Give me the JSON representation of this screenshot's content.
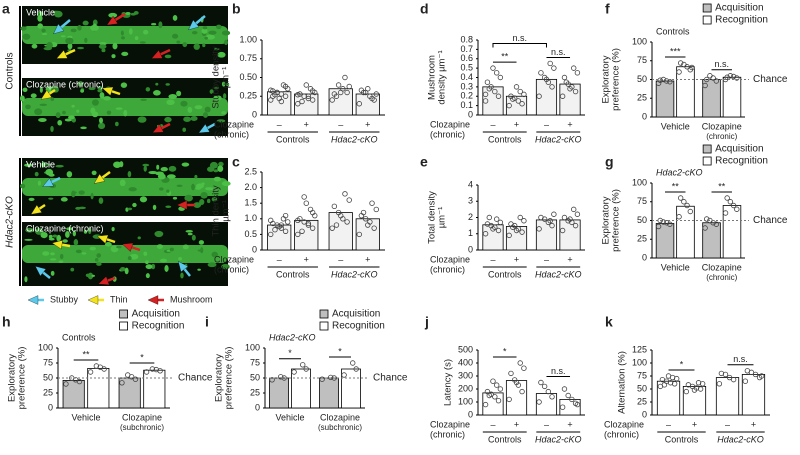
{
  "panel_a": {
    "label": "a",
    "groups": [
      "Controls",
      "Hdac2-cKO"
    ],
    "images": [
      "Vehicle",
      "Clozapine (chronic)",
      "Vehicle",
      "Clozapine (chronic)"
    ],
    "legend": [
      "Stubby",
      "Thin",
      "Mushroom"
    ],
    "legend_colors": [
      "#5cc8ea",
      "#f2e31c",
      "#d42222"
    ]
  },
  "chart_data": [
    {
      "type": "bar",
      "label": "b",
      "ylabel": [
        "Stubby density",
        "µm⁻¹"
      ],
      "treatment": [
        "Clozapine",
        "(chronic)"
      ],
      "categories": [
        "–",
        "+",
        "–",
        "+"
      ],
      "groups": [
        "Controls",
        "Hdac2-cKO"
      ],
      "color": "#f2f2f2",
      "values": [
        0.31,
        0.28,
        0.35,
        0.28
      ],
      "points": [
        [
          0.2,
          0.25,
          0.28,
          0.3,
          0.32,
          0.35,
          0.4,
          0.22,
          0.27,
          0.33,
          0.38,
          0.18,
          0.3,
          0.25
        ],
        [
          0.15,
          0.2,
          0.22,
          0.25,
          0.28,
          0.3,
          0.35,
          0.4,
          0.18,
          0.27,
          0.32,
          0.25
        ],
        [
          0.2,
          0.3,
          0.35,
          0.4,
          0.28,
          0.38,
          0.5,
          0.3,
          0.25
        ],
        [
          0.15,
          0.2,
          0.25,
          0.3,
          0.33,
          0.28,
          0.22,
          0.35,
          0.3
        ]
      ],
      "ylim": [
        0,
        1
      ],
      "yticks": [
        0,
        0.25,
        {
          "value": 0.5,
          "label": "0.50"
        },
        0.75,
        {
          "value": 1,
          "label": "1.00"
        }
      ]
    },
    {
      "type": "bar",
      "label": "c",
      "ylabel": [
        "Thin density",
        "µm⁻¹"
      ],
      "treatment": [
        "Clozapine",
        "(chronic)"
      ],
      "categories": [
        "–",
        "+",
        "–",
        "+"
      ],
      "groups": [
        "Controls",
        "Hdac2-cKO"
      ],
      "color": "#f2f2f2",
      "values": [
        0.8,
        0.95,
        1.2,
        1.0
      ],
      "points": [
        [
          0.5,
          0.6,
          0.7,
          0.8,
          0.85,
          0.9,
          1.0,
          0.75,
          0.65,
          0.95,
          1.1,
          0.8
        ],
        [
          0.5,
          0.7,
          0.8,
          0.9,
          1.0,
          1.1,
          1.3,
          1.5,
          0.6,
          0.95,
          1.2,
          0.85,
          1.7
        ],
        [
          0.7,
          0.9,
          1.0,
          1.2,
          1.4,
          1.6,
          1.8,
          1.1,
          0.8
        ],
        [
          0.5,
          0.7,
          0.9,
          1.0,
          1.1,
          1.3,
          1.5,
          0.8,
          1.2
        ]
      ],
      "ylim": [
        0,
        2.5
      ],
      "yticks": [
        0,
        0.5,
        {
          "value": 1,
          "label": "1.0"
        },
        1.5,
        {
          "value": 2,
          "label": "2.0"
        },
        2.5
      ]
    },
    {
      "type": "bar",
      "label": "d",
      "ylabel": [
        "Mushroom",
        "density µm⁻¹"
      ],
      "treatment": [
        "Clozapine",
        "(chronic)"
      ],
      "categories": [
        "–",
        "+",
        "–",
        "+"
      ],
      "groups": [
        "Controls",
        "Hdac2-cKO"
      ],
      "color": "#f2f2f2",
      "values": [
        0.3,
        0.2,
        0.38,
        0.33
      ],
      "points": [
        [
          0.15,
          0.2,
          0.25,
          0.3,
          0.35,
          0.4,
          0.45,
          0.5,
          0.28,
          0.22
        ],
        [
          0.1,
          0.12,
          0.15,
          0.18,
          0.2,
          0.22,
          0.25,
          0.3,
          0.17
        ],
        [
          0.2,
          0.3,
          0.35,
          0.4,
          0.45,
          0.5,
          0.55,
          0.38
        ],
        [
          0.2,
          0.25,
          0.3,
          0.33,
          0.4,
          0.45,
          0.5,
          0.28,
          0.35
        ]
      ],
      "ylim": [
        0,
        0.8
      ],
      "yticks": [
        0,
        0.1,
        0.2,
        0.3,
        0.4,
        0.5,
        0.6,
        0.7,
        0.8
      ],
      "significance": {
        "within": [
          "**",
          "n.s."
        ],
        "across": [
          "n.s."
        ]
      }
    },
    {
      "type": "bar",
      "label": "e",
      "ylabel": [
        "Total density",
        "µm⁻¹"
      ],
      "treatment": [
        "Clozapine",
        "(chronic)"
      ],
      "categories": [
        "–",
        "+",
        "–",
        "+"
      ],
      "groups": [
        "Controls",
        "Hdac2-cKO"
      ],
      "color": "#f2f2f2",
      "values": [
        1.55,
        1.45,
        1.85,
        1.85
      ],
      "points": [
        [
          1.0,
          1.2,
          1.4,
          1.5,
          1.6,
          1.7,
          1.9,
          1.3,
          2.0
        ],
        [
          0.9,
          1.1,
          1.3,
          1.5,
          1.6,
          1.8,
          2.0,
          1.2,
          1.4
        ],
        [
          1.3,
          1.5,
          1.7,
          1.9,
          2.0,
          2.2,
          1.8
        ],
        [
          1.2,
          1.5,
          1.7,
          1.8,
          2.0,
          2.2,
          2.5,
          1.9
        ]
      ],
      "ylim": [
        0,
        4
      ],
      "yticks": [
        0,
        1,
        2,
        3,
        4
      ]
    },
    {
      "type": "grouped_bar",
      "label": "f",
      "subtitle": "Controls",
      "ylabel": [
        "Exploratory",
        "preference (%)"
      ],
      "categories": [
        [
          "Vehicle"
        ],
        [
          "Clozapine",
          "(chronic)"
        ]
      ],
      "series": [
        {
          "name": "Acquisition",
          "color": "#bfbfbf",
          "values": [
            48,
            50
          ],
          "points": [
            [
              45,
              47,
              48,
              50,
              49
            ],
            [
              42,
              48,
              52,
              55,
              50
            ]
          ]
        },
        {
          "name": "Recognition",
          "color": "#ffffff",
          "values": [
            67,
            53
          ],
          "points": [
            [
              60,
              63,
              67,
              70,
              72,
              66
            ],
            [
              50,
              52,
              54,
              55,
              53
            ]
          ]
        }
      ],
      "reference": {
        "value": 50,
        "label": "Chance"
      },
      "ylim": [
        0,
        100
      ],
      "yticks": [
        0,
        25,
        50,
        75,
        100
      ],
      "significance": {
        "within": [
          "***",
          "n.s."
        ]
      }
    },
    {
      "type": "grouped_bar",
      "label": "g",
      "subtitle": "Hdac2-cKO",
      "ylabel": [
        "Exploratory",
        "preference (%)"
      ],
      "categories": [
        [
          "Vehicle"
        ],
        [
          "Clozapine",
          "(chronic)"
        ]
      ],
      "series": [
        {
          "name": "Acquisition",
          "color": "#bfbfbf",
          "values": [
            46,
            47
          ],
          "points": [
            [
              42,
              45,
              47,
              48,
              50
            ],
            [
              40,
              45,
              47,
              50,
              52
            ]
          ]
        },
        {
          "name": "Recognition",
          "color": "#ffffff",
          "values": [
            69,
            70
          ],
          "points": [
            [
              55,
              62,
              70,
              75,
              80
            ],
            [
              60,
              65,
              70,
              75,
              80
            ]
          ]
        }
      ],
      "reference": {
        "value": 50,
        "label": "Chance"
      },
      "ylim": [
        0,
        100
      ],
      "yticks": [
        0,
        25,
        50,
        75,
        100
      ],
      "significance": {
        "within": [
          "**",
          "**"
        ]
      }
    },
    {
      "type": "grouped_bar",
      "label": "h",
      "subtitle": "Controls",
      "ylabel": [
        "Exploratory",
        "preference (%)"
      ],
      "categories": [
        [
          "Vehicle"
        ],
        [
          "Clozapine",
          "(subchronic)"
        ]
      ],
      "series": [
        {
          "name": "Acquisition",
          "color": "#bfbfbf",
          "values": [
            46,
            50
          ],
          "points": [
            [
              40,
              44,
              47,
              50
            ],
            [
              42,
              48,
              52,
              55
            ]
          ]
        },
        {
          "name": "Recognition",
          "color": "#ffffff",
          "values": [
            66,
            63
          ],
          "points": [
            [
              60,
              65,
              68,
              70
            ],
            [
              60,
              62,
              64,
              65
            ]
          ]
        }
      ],
      "reference": {
        "value": 50,
        "label": "Chance"
      },
      "ylim": [
        0,
        100
      ],
      "yticks": [
        0,
        25,
        50,
        75,
        100
      ],
      "significance": {
        "within": [
          "**",
          "*"
        ]
      }
    },
    {
      "type": "grouped_bar",
      "label": "i",
      "subtitle": "Hdac2-cKO",
      "ylabel": [
        "Exploratory",
        "preference (%)"
      ],
      "categories": [
        [
          "Vehicle"
        ],
        [
          "Clozapine",
          "(subchronic)"
        ]
      ],
      "series": [
        {
          "name": "Acquisition",
          "color": "#bfbfbf",
          "values": [
            50,
            50
          ],
          "points": [
            [
              47,
              50,
              52
            ],
            [
              48,
              50,
              51
            ]
          ]
        },
        {
          "name": "Recognition",
          "color": "#ffffff",
          "values": [
            65,
            65
          ],
          "points": [
            [
              60,
              65,
              72
            ],
            [
              55,
              65,
              75
            ]
          ]
        }
      ],
      "reference": {
        "value": 50,
        "label": "Chance"
      },
      "ylim": [
        0,
        100
      ],
      "yticks": [
        0,
        25,
        50,
        75,
        100
      ],
      "significance": {
        "within": [
          "*",
          "*"
        ]
      }
    },
    {
      "type": "bar",
      "label": "j",
      "ylabel": [
        "Latency (s)"
      ],
      "treatment": [
        "Clozapine",
        "(chronic)"
      ],
      "categories": [
        "–",
        "+",
        "–",
        "+"
      ],
      "groups": [
        "Controls",
        "Hdac2-cKO"
      ],
      "color": "#ffffff",
      "values": [
        170,
        265,
        165,
        120
      ],
      "points": [
        [
          80,
          110,
          140,
          160,
          180,
          200,
          230,
          260,
          150
        ],
        [
          120,
          180,
          230,
          270,
          320,
          360,
          400,
          250
        ],
        [
          100,
          140,
          180,
          220,
          250
        ],
        [
          60,
          90,
          120,
          150,
          200,
          80
        ]
      ],
      "ylim": [
        0,
        500
      ],
      "yticks": [
        0,
        100,
        200,
        300,
        400,
        500
      ],
      "significance": {
        "within": [
          "*",
          "n.s."
        ]
      }
    },
    {
      "type": "bar",
      "label": "k",
      "ylabel": [
        "Alternation (%)"
      ],
      "treatment": [
        "Clozapine",
        "(chronic)"
      ],
      "categories": [
        "–",
        "+",
        "–",
        "+"
      ],
      "groups": [
        "Controls",
        "Hdac2-cKO"
      ],
      "color": "#ffffff",
      "values": [
        65,
        55,
        72,
        78
      ],
      "points": [
        [
          55,
          60,
          62,
          65,
          68,
          70,
          72,
          75,
          58
        ],
        [
          45,
          50,
          52,
          55,
          58,
          60,
          62,
          48
        ],
        [
          60,
          68,
          72,
          78,
          80
        ],
        [
          65,
          72,
          78,
          82,
          85,
          75
        ]
      ],
      "ylim": [
        0,
        125
      ],
      "yticks": [
        0,
        25,
        50,
        75,
        100,
        125
      ],
      "significance": {
        "within": [
          "*",
          "n.s."
        ]
      }
    }
  ]
}
